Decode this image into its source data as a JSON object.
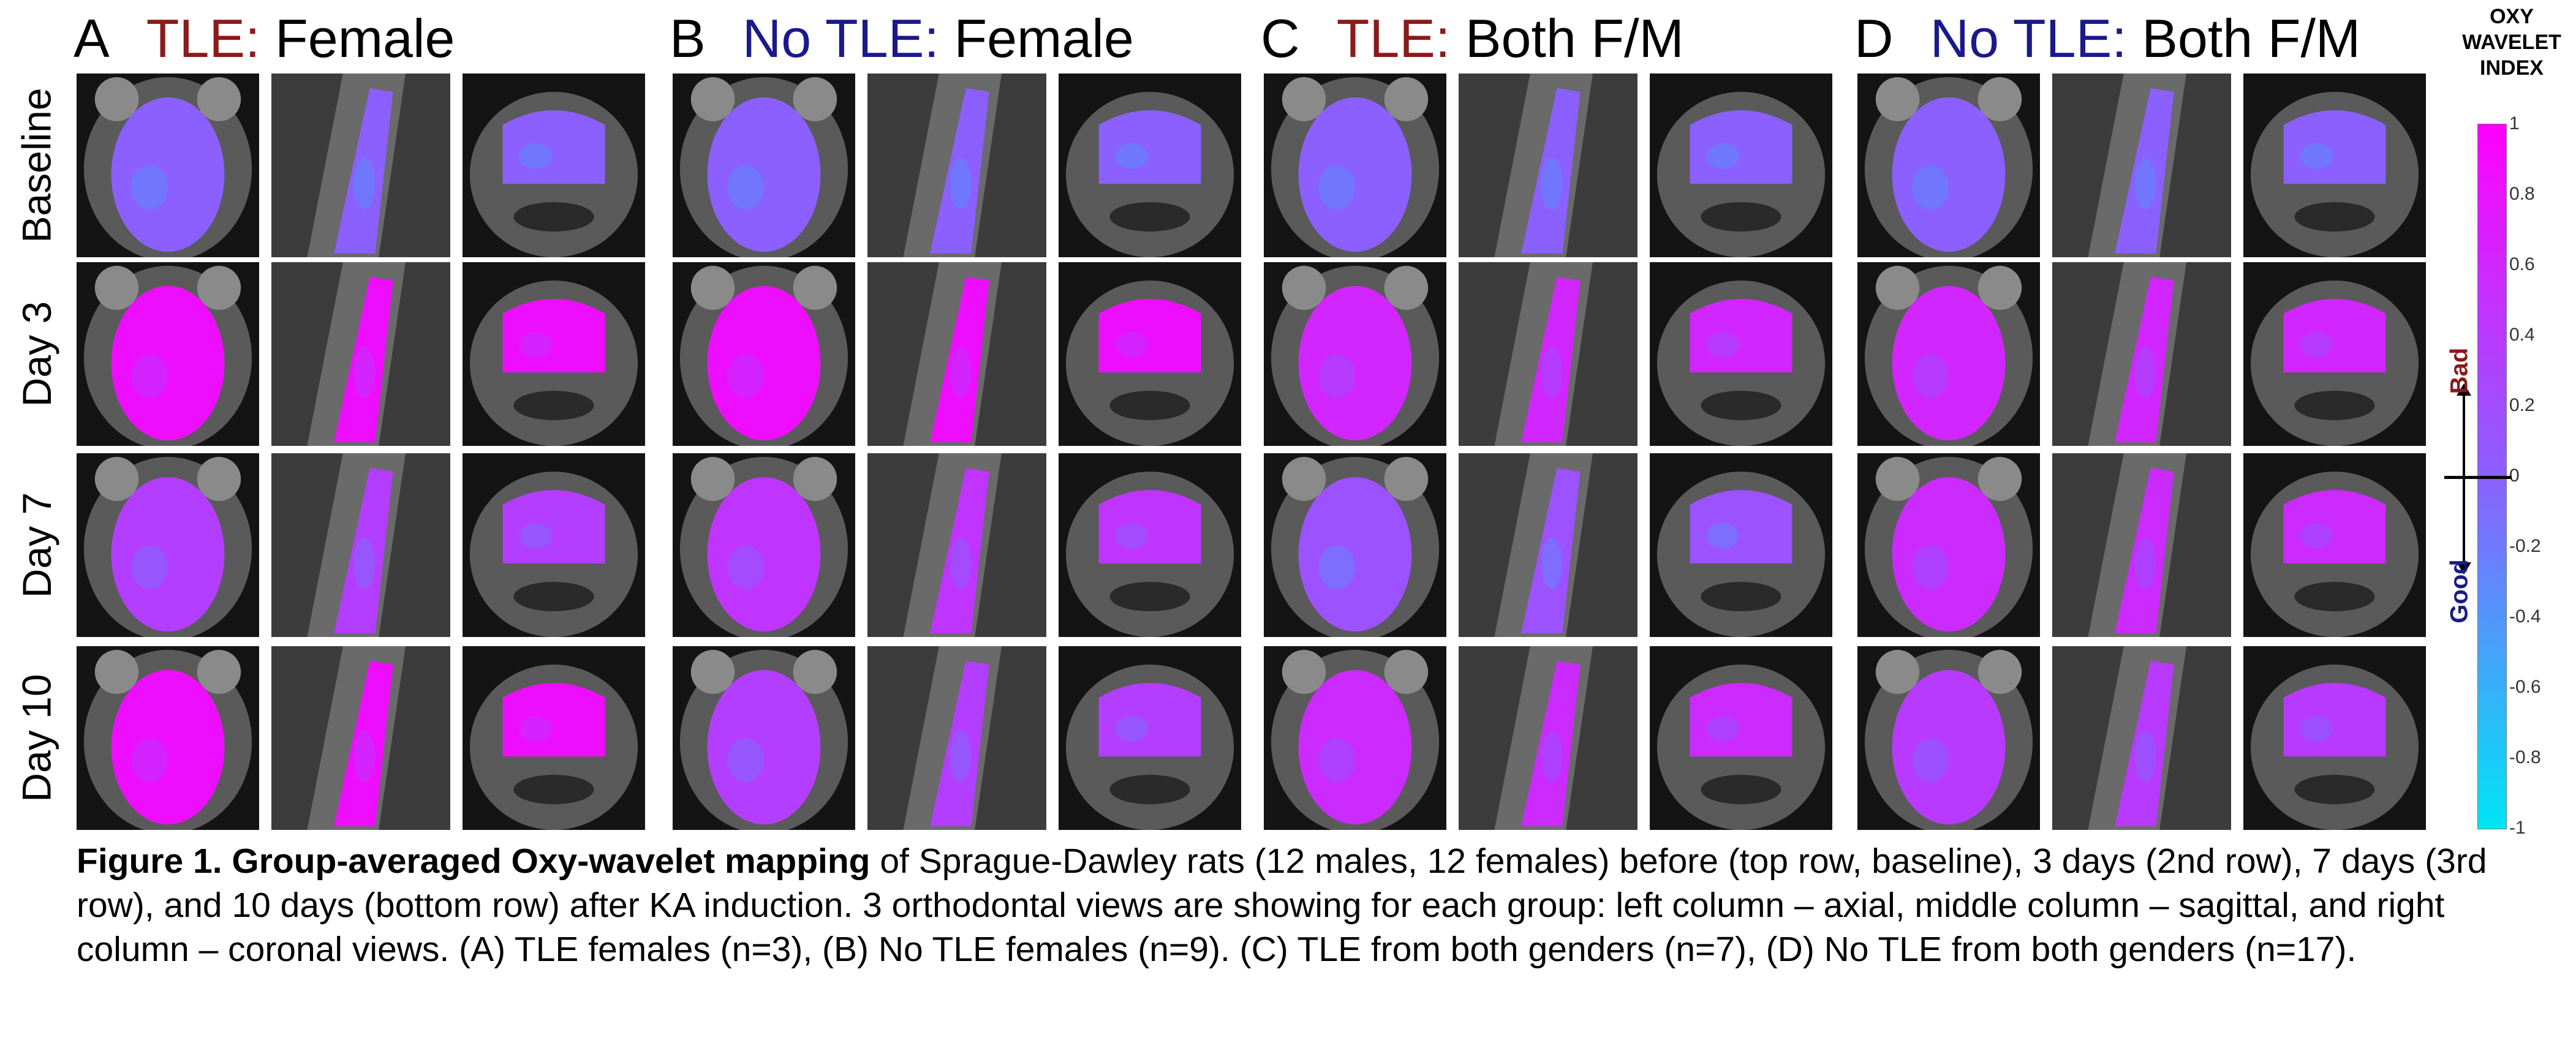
{
  "panels": [
    {
      "letter": "A",
      "group": "TLE:",
      "sex": "Female",
      "group_color": "red"
    },
    {
      "letter": "B",
      "group": "No TLE:",
      "sex": "Female",
      "group_color": "blue"
    },
    {
      "letter": "C",
      "group": "TLE:",
      "sex": "Both F/M",
      "group_color": "red"
    },
    {
      "letter": "D",
      "group": "No TLE:",
      "sex": "Both F/M",
      "group_color": "blue"
    }
  ],
  "rows": [
    "Baseline",
    "Day 3",
    "Day 7",
    "Day 10"
  ],
  "colorbar": {
    "title_lines": [
      "OXY",
      "WAVELET",
      "INDEX"
    ],
    "ticks": [
      "1",
      "0.8",
      "0.6",
      "0.4",
      "0.2",
      "0",
      "-0.2",
      "-0.4",
      "-0.6",
      "-0.8",
      "-1"
    ],
    "bad_label": "Bad",
    "good_label": "Good",
    "colors": {
      "max": "#ff00ff",
      "mid": "#8b60ff",
      "min": "#00e5f5"
    }
  },
  "map_levels": {
    "description_scale": "oxy wavelet index, -1 (cyan) to 1 (magenta)",
    "A": [
      0.0,
      0.85,
      0.35,
      0.85
    ],
    "B": [
      0.0,
      0.85,
      0.45,
      0.35
    ],
    "C": [
      0.0,
      0.6,
      0.15,
      0.55
    ],
    "D": [
      0.0,
      0.6,
      0.55,
      0.4
    ]
  },
  "caption": {
    "title": "Figure 1. Group-averaged Oxy-wavelet mapping",
    "body": " of Sprague-Dawley rats (12 males, 12 females) before (top row, baseline), 3 days (2nd row), 7 days (3rd row), and 10 days (bottom row) after KA induction. 3 orthodontal views are showing for each group: left column – axial, middle column – sagittal, and right column – coronal views. (A) TLE females (n=3), (B) No TLE females (n=9). (C) TLE from both genders (n=7), (D) No TLE from both genders (n=17)."
  }
}
